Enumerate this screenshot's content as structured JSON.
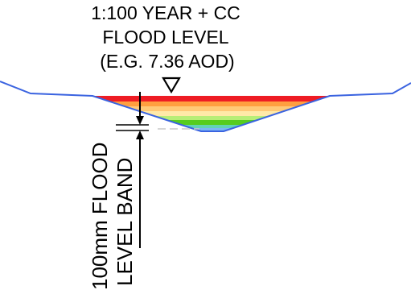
{
  "title": {
    "lines": [
      "1:100 YEAR + CC",
      "FLOOD LEVEL",
      "(E.G. 7.36 AOD)"
    ]
  },
  "band_label": {
    "lines": [
      "100mm FLOOD",
      "LEVEL BAND"
    ]
  },
  "colors": {
    "ground_line": "#3a63e0",
    "arrows": "#000000",
    "dash": "#c8c8c8",
    "bands": [
      "#ee1c24",
      "#ff9f3f",
      "#ffc977",
      "#ffe9a8",
      "#b7ee77",
      "#56cc1e",
      "#62d3b6",
      "#7bb7f5"
    ]
  },
  "icons": {
    "level_marker": "inverted-triangle-icon"
  }
}
